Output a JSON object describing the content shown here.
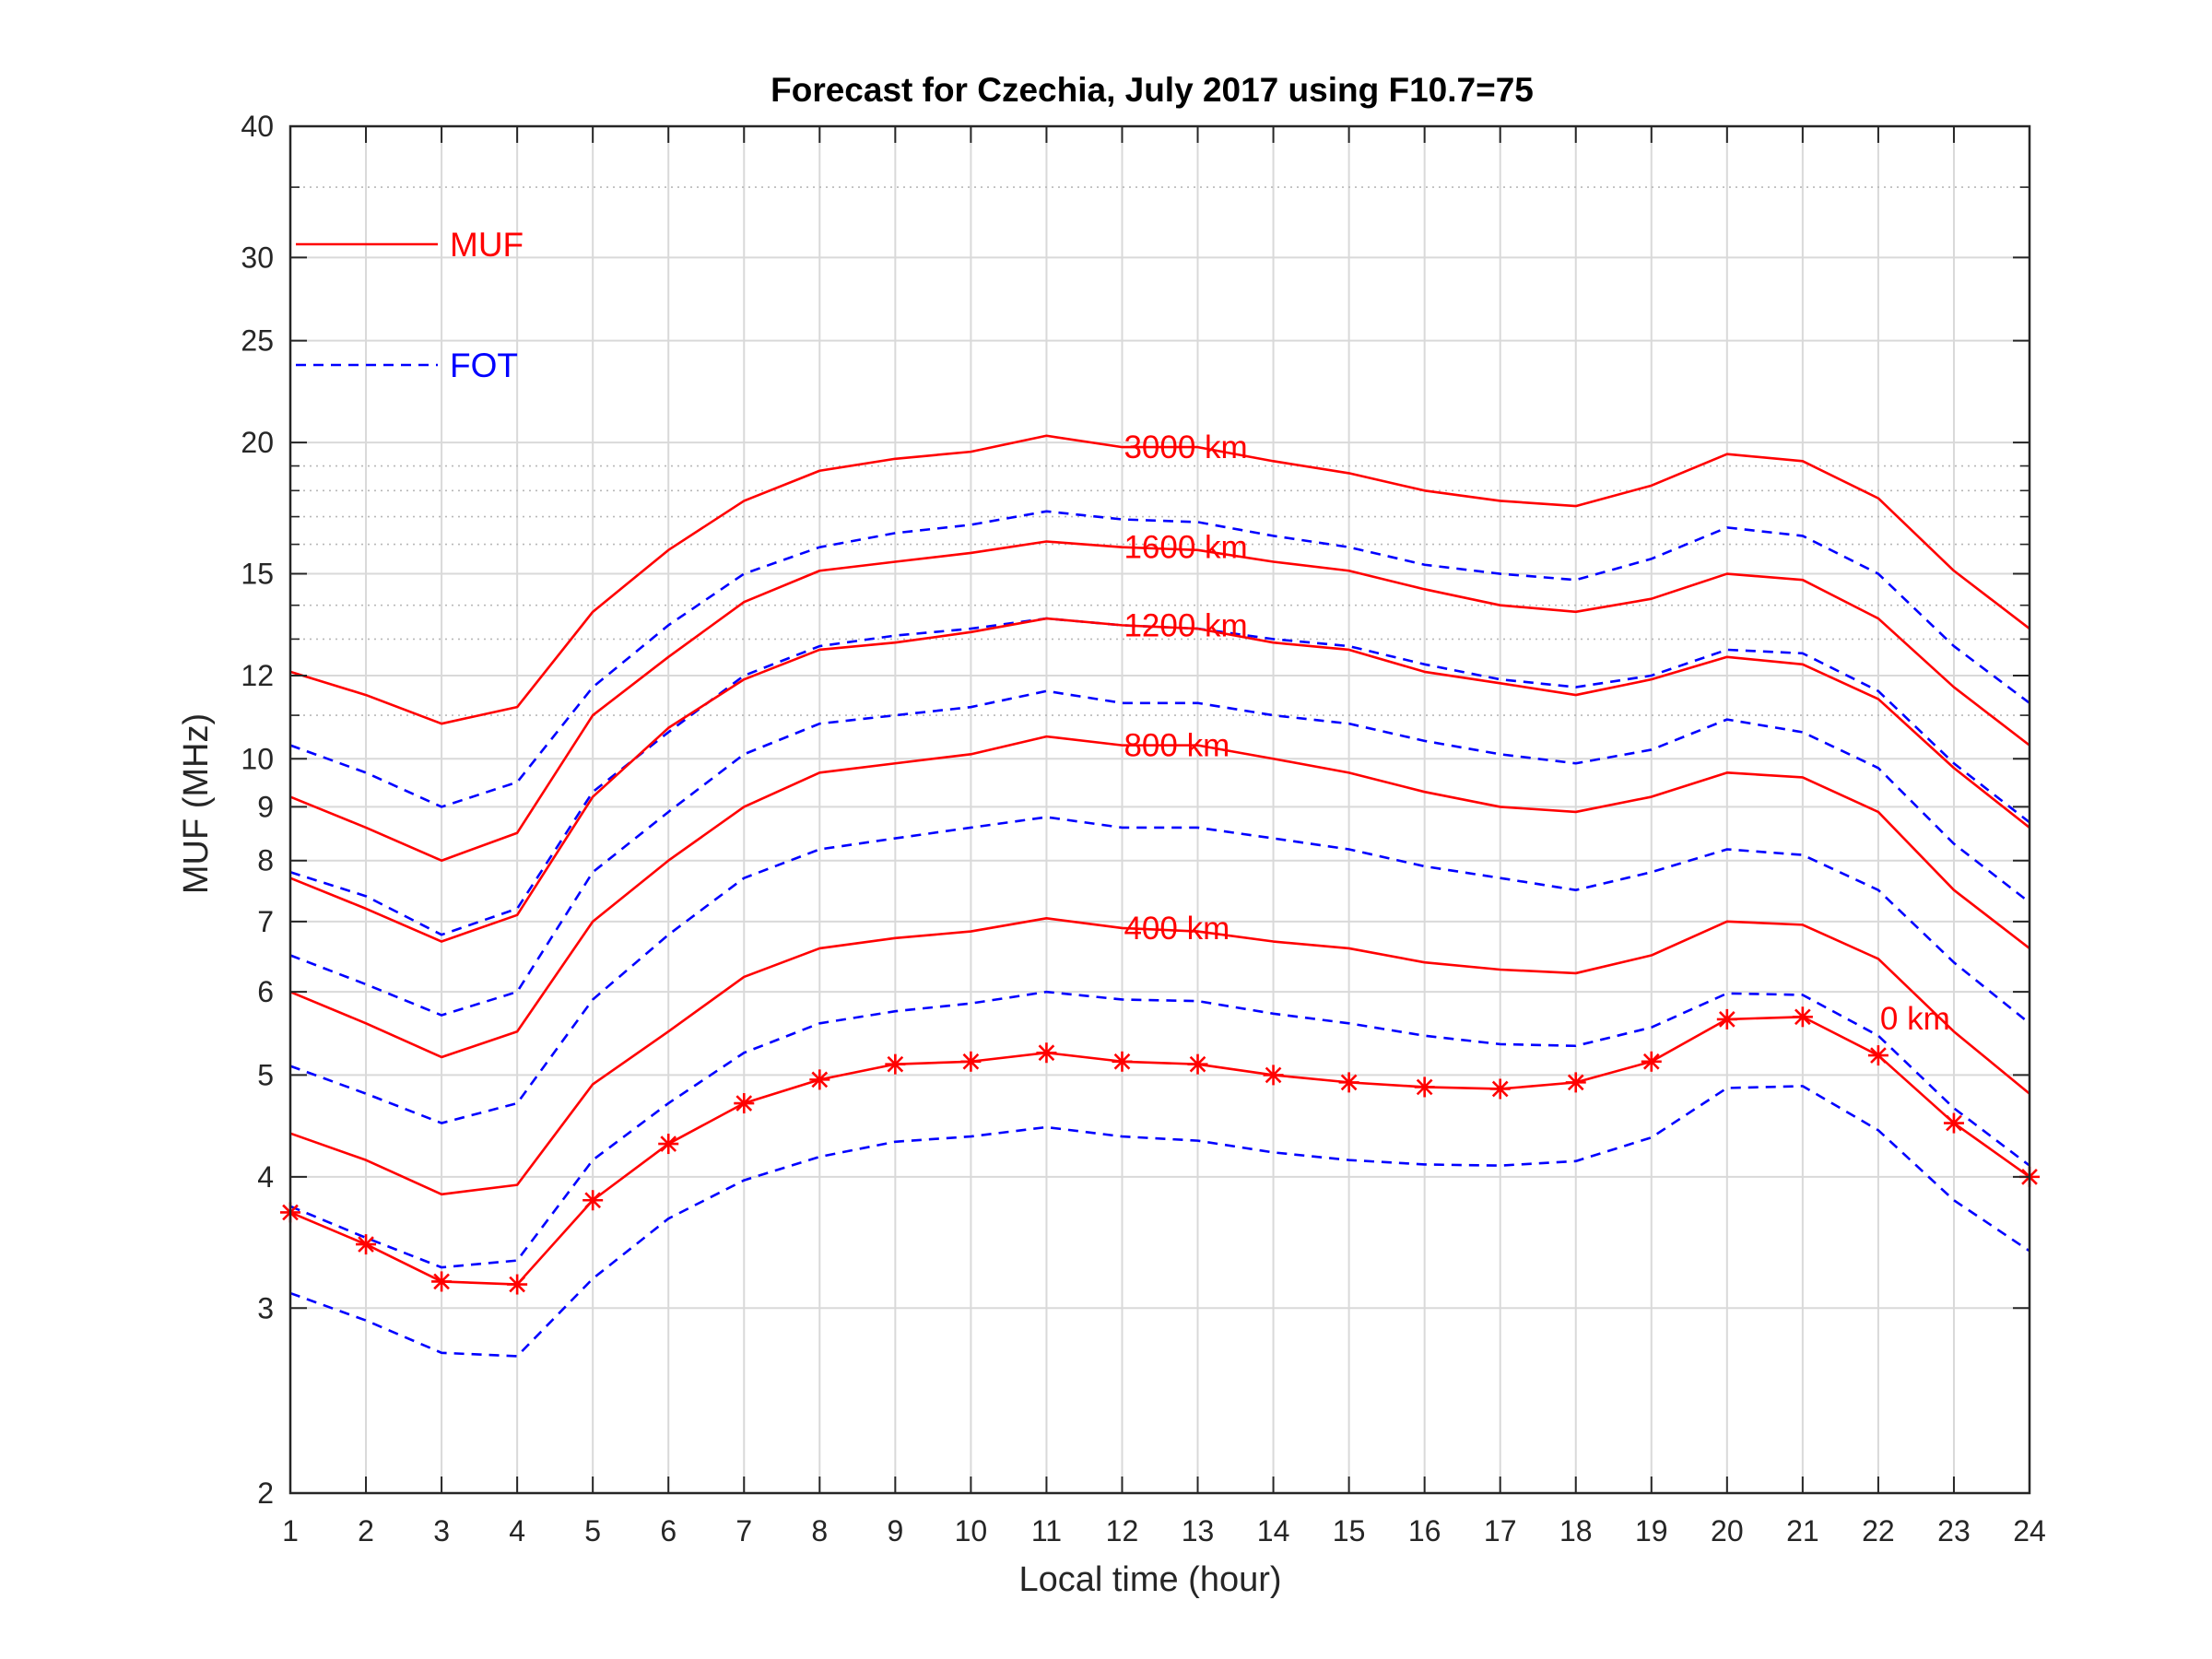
{
  "chart_data": {
    "type": "line",
    "title": "Forecast for Czechia, July 2017 using F10.7=75",
    "xlabel": "Local time (hour)",
    "ylabel": "MUF (MHz)",
    "xlim": [
      1,
      24
    ],
    "ylim": [
      2,
      40
    ],
    "yscale": "log",
    "grid": true,
    "x": [
      1,
      2,
      3,
      4,
      5,
      6,
      7,
      8,
      9,
      10,
      11,
      12,
      13,
      14,
      15,
      16,
      17,
      18,
      19,
      20,
      21,
      22,
      23,
      24
    ],
    "xticks": [
      "1",
      "2",
      "3",
      "4",
      "5",
      "6",
      "7",
      "8",
      "9",
      "10",
      "11",
      "12",
      "13",
      "14",
      "15",
      "16",
      "17",
      "18",
      "19",
      "20",
      "21",
      "22",
      "23",
      "24"
    ],
    "yticks": [
      {
        "value": 2,
        "label": "2"
      },
      {
        "value": 3,
        "label": "3"
      },
      {
        "value": 4,
        "label": "4"
      },
      {
        "value": 5,
        "label": "5"
      },
      {
        "value": 6,
        "label": "6"
      },
      {
        "value": 7,
        "label": "7"
      },
      {
        "value": 8,
        "label": "8"
      },
      {
        "value": 9,
        "label": "9"
      },
      {
        "value": 10,
        "label": "10"
      },
      {
        "value": 12,
        "label": "12"
      },
      {
        "value": 15,
        "label": "15"
      },
      {
        "value": 20,
        "label": "20"
      },
      {
        "value": 25,
        "label": "25"
      },
      {
        "value": 30,
        "label": "30"
      },
      {
        "value": 40,
        "label": "40"
      }
    ],
    "legend": {
      "placement": "top-left",
      "entries": [
        {
          "label": "MUF",
          "color": "#ff0000",
          "style": "solid"
        },
        {
          "label": "FOT",
          "color": "#0000ff",
          "style": "dashed"
        }
      ]
    },
    "series": [
      {
        "kind": "MUF",
        "label": "3000 km",
        "label_at": 12,
        "color": "#ff0000",
        "style": "solid",
        "values": [
          12.1,
          11.5,
          10.8,
          11.2,
          13.8,
          15.8,
          17.6,
          18.8,
          19.3,
          19.6,
          20.3,
          19.8,
          19.8,
          19.2,
          18.7,
          18.0,
          17.6,
          17.4,
          18.2,
          19.5,
          19.2,
          17.7,
          15.1,
          13.3
        ]
      },
      {
        "kind": "FOT",
        "color": "#0000ff",
        "style": "dashed",
        "values": [
          10.3,
          9.7,
          9.0,
          9.5,
          11.7,
          13.4,
          15.0,
          15.9,
          16.4,
          16.7,
          17.2,
          16.9,
          16.8,
          16.3,
          15.9,
          15.3,
          15.0,
          14.8,
          15.5,
          16.6,
          16.3,
          15.0,
          12.8,
          11.3
        ]
      },
      {
        "kind": "MUF",
        "label": "1600 km",
        "label_at": 12,
        "color": "#ff0000",
        "style": "solid",
        "values": [
          9.2,
          8.6,
          8.0,
          8.5,
          11.0,
          12.5,
          14.1,
          15.1,
          15.4,
          15.7,
          16.1,
          15.9,
          15.8,
          15.4,
          15.1,
          14.5,
          14.0,
          13.8,
          14.2,
          15.0,
          14.8,
          13.6,
          11.7,
          10.3
        ]
      },
      {
        "kind": "FOT",
        "color": "#0000ff",
        "style": "dashed",
        "values": [
          7.8,
          7.4,
          6.8,
          7.2,
          9.3,
          10.6,
          12.0,
          12.8,
          13.1,
          13.3,
          13.6,
          13.4,
          13.3,
          13.0,
          12.8,
          12.3,
          11.9,
          11.7,
          12.0,
          12.7,
          12.6,
          11.6,
          9.9,
          8.7
        ]
      },
      {
        "kind": "MUF",
        "label": "1200 km",
        "label_at": 12,
        "color": "#ff0000",
        "style": "solid",
        "values": [
          7.7,
          7.2,
          6.7,
          7.1,
          9.2,
          10.7,
          11.9,
          12.7,
          12.9,
          13.2,
          13.6,
          13.4,
          13.3,
          12.9,
          12.7,
          12.1,
          11.8,
          11.5,
          11.9,
          12.5,
          12.3,
          11.4,
          9.8,
          8.6
        ]
      },
      {
        "kind": "FOT",
        "color": "#0000ff",
        "style": "dashed",
        "values": [
          6.5,
          6.1,
          5.7,
          6.0,
          7.8,
          8.9,
          10.1,
          10.8,
          11.0,
          11.2,
          11.6,
          11.3,
          11.3,
          11.0,
          10.8,
          10.4,
          10.1,
          9.9,
          10.2,
          10.9,
          10.6,
          9.8,
          8.3,
          7.3
        ]
      },
      {
        "kind": "MUF",
        "label": "800 km",
        "label_at": 12,
        "color": "#ff0000",
        "style": "solid",
        "values": [
          6.0,
          5.6,
          5.2,
          5.5,
          7.0,
          8.0,
          9.0,
          9.7,
          9.9,
          10.1,
          10.5,
          10.3,
          10.3,
          10.0,
          9.7,
          9.3,
          9.0,
          8.9,
          9.2,
          9.7,
          9.6,
          8.9,
          7.5,
          6.6
        ]
      },
      {
        "kind": "FOT",
        "color": "#0000ff",
        "style": "dashed",
        "values": [
          5.1,
          4.8,
          4.5,
          4.7,
          5.9,
          6.8,
          7.7,
          8.2,
          8.4,
          8.6,
          8.8,
          8.6,
          8.6,
          8.4,
          8.2,
          7.9,
          7.7,
          7.5,
          7.8,
          8.2,
          8.1,
          7.5,
          6.4,
          5.6
        ]
      },
      {
        "kind": "MUF",
        "label": "400 km",
        "label_at": 12,
        "color": "#ff0000",
        "style": "solid",
        "values": [
          4.4,
          4.15,
          3.85,
          3.93,
          4.9,
          5.5,
          6.2,
          6.6,
          6.75,
          6.85,
          7.05,
          6.9,
          6.85,
          6.7,
          6.6,
          6.4,
          6.3,
          6.25,
          6.5,
          7.0,
          6.95,
          6.45,
          5.5,
          4.8
        ]
      },
      {
        "kind": "FOT",
        "color": "#0000ff",
        "style": "dashed",
        "values": [
          3.75,
          3.5,
          3.28,
          3.33,
          4.15,
          4.7,
          5.25,
          5.6,
          5.75,
          5.85,
          6.0,
          5.9,
          5.88,
          5.72,
          5.6,
          5.45,
          5.35,
          5.33,
          5.55,
          5.98,
          5.96,
          5.45,
          4.65,
          4.1
        ]
      },
      {
        "kind": "MUF",
        "label": "0 km",
        "label_at": 22,
        "color": "#ff0000",
        "style": "solid-star",
        "values": [
          3.7,
          3.45,
          3.18,
          3.16,
          3.8,
          4.3,
          4.7,
          4.95,
          5.12,
          5.15,
          5.25,
          5.15,
          5.12,
          5.0,
          4.92,
          4.87,
          4.85,
          4.92,
          5.15,
          5.65,
          5.68,
          5.22,
          4.5,
          4.0
        ]
      },
      {
        "kind": "FOT",
        "color": "#0000ff",
        "style": "dashed",
        "values": [
          3.1,
          2.92,
          2.72,
          2.7,
          3.2,
          3.65,
          3.97,
          4.18,
          4.32,
          4.37,
          4.46,
          4.37,
          4.33,
          4.22,
          4.15,
          4.11,
          4.1,
          4.14,
          4.36,
          4.86,
          4.88,
          4.43,
          3.8,
          3.4
        ]
      }
    ]
  }
}
